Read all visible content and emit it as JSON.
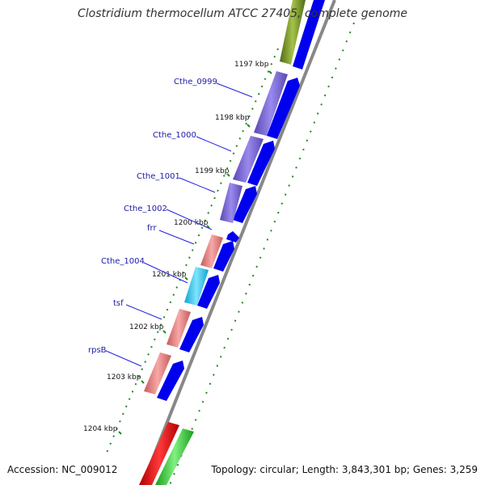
{
  "header": {
    "title": "Clostridium thermocellum ATCC 27405, complete genome"
  },
  "footer": {
    "accession": "Accession: NC_009012",
    "topology": "Topology: circular; Length: 3,843,301 bp; Genes: 3,259"
  },
  "ticks": [
    "1197 kbp",
    "1198 kbp",
    "1199 kbp",
    "1200 kbp",
    "1201 kbp",
    "1202 kbp",
    "1203 kbp",
    "1204 kbp"
  ],
  "gene_labels": [
    "Cthe_0999",
    "Cthe_1000",
    "Cthe_1001",
    "Cthe_1002",
    "frr",
    "Cthe_1004",
    "tsf",
    "rpsB"
  ],
  "colors": {
    "purple": "#7b68d6",
    "pink": "#e58080",
    "cyan": "#2ec7ee",
    "olive": "#6b8e23",
    "red": "#e00000",
    "green": "#33cc33",
    "blue": "#0000ee",
    "backbone": "#888888",
    "dots": "#228b22",
    "label": "#1a1aa6"
  }
}
